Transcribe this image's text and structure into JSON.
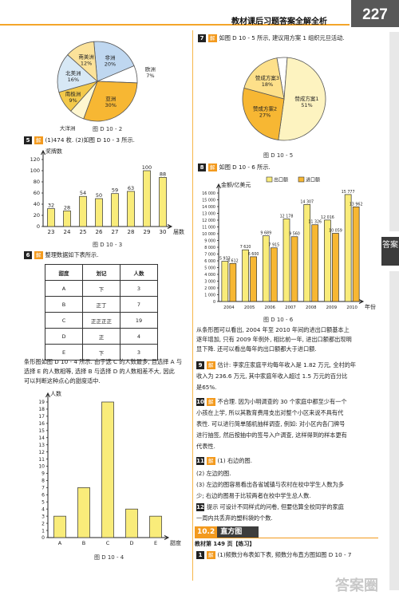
{
  "header": {
    "title": "教材课后习题答案全解全析",
    "page": "227"
  },
  "side_tab": "答案",
  "left": {
    "pie1": {
      "slices": [
        {
          "label": "非洲",
          "pct": "20%",
          "value": 20,
          "color": "#bfd7f0"
        },
        {
          "label": "欧洲",
          "pct": "7%",
          "value": 7,
          "color": "#ffffff"
        },
        {
          "label": "亚洲",
          "pct": "30%",
          "value": 30,
          "color": "#f7b733"
        },
        {
          "label": "大洋洲",
          "pct": "6%",
          "value": 6,
          "color": "#fff7d0"
        },
        {
          "label": "南极洲",
          "pct": "9%",
          "value": 9,
          "color": "#f3c94a"
        },
        {
          "label": "北美洲",
          "pct": "16%",
          "value": 16,
          "color": "#d7e8f5"
        },
        {
          "label": "南美洲",
          "pct": "12%",
          "value": 12,
          "color": "#fbe29a"
        }
      ],
      "caption": "图 D 10 - 2"
    },
    "q5": {
      "num": "5",
      "jie": "解",
      "text": "(1)474 枚. (2)如图 D 10 - 3 所示."
    },
    "bar1": {
      "ylabel": "奖牌数",
      "xlabel": "届数",
      "caption": "图 D 10 - 3"
    },
    "q6": {
      "num": "6",
      "jie": "解",
      "text": "整理数据如下表所示."
    },
    "table": {
      "headers": [
        "甜度",
        "划记",
        "人数"
      ],
      "rows": [
        [
          "A",
          "下",
          "3"
        ],
        [
          "B",
          "正丁",
          "7"
        ],
        [
          "C",
          "正正正正",
          "19"
        ],
        [
          "D",
          "正",
          "4"
        ],
        [
          "E",
          "下",
          "3"
        ]
      ]
    },
    "para": [
      "条形图如图 D 10 - 4 所示. 由于选 C 的人数最多, 且选择 A 与",
      "选择 E 的人数相等, 选择 B 与选择 D 的人数相差不大, 因此",
      "可以判断这种点心的甜度适中."
    ],
    "bar2": {
      "ylabel": "人数",
      "xlabel": "甜度",
      "caption": "图 D 10 - 4"
    }
  },
  "right": {
    "q7": {
      "num": "7",
      "jie": "解",
      "text": "如图 D 10 - 5 所示, 建议用方案 1 组织元旦活动."
    },
    "pie2": {
      "slices": [
        {
          "label": "弃权",
          "pct": "4%",
          "value": 4,
          "color": "#ffffff"
        },
        {
          "label": "赞成方案1",
          "pct": "51%",
          "value": 51,
          "color": "#fdf3c0"
        },
        {
          "label": "赞成方案2",
          "pct": "27%",
          "value": 27,
          "color": "#f7b733"
        },
        {
          "label": "赞成方案3",
          "pct": "18%",
          "value": 18,
          "color": "#fde08a"
        }
      ],
      "caption": "图 D 10 - 5"
    },
    "q8": {
      "num": "8",
      "jie": "解",
      "text": "如图 D 10 - 6 所示."
    },
    "bar3": {
      "ylabel": "金额/亿美元",
      "xlabel": "年份",
      "legend": [
        "出口额",
        "进口额"
      ],
      "caption": "图 D 10 - 6"
    },
    "para8": [
      "从条形图可以看出, 2004 年至 2010 年间的进出口额基本上",
      "逐年增加, 只有 2009 年例外, 相比前一年, 进出口额都出现明",
      "显下降. 还可以看出每年的出口额都大于进口额."
    ],
    "q9": {
      "num": "9",
      "jie": "解",
      "lines": [
        "估计: 李家庄家庭平均每年收入是 1.82 万元, 全村的年",
        "收入为 236.6 万元, 其中家庭年收入超过 1.5 万元的百分比",
        "是65%."
      ]
    },
    "q10": {
      "num": "10",
      "jie": "解",
      "lines": [
        "不合理. 因为小明调查的 30 个家庭中都至少有一个",
        "小孩在上学, 所以其教育费用支出对整个小区来说不具有代",
        "表性. 可以进行简单随机抽样调查, 例如: 对小区内各门牌号",
        "进行抽签, 然后按抽中的签号入户调查, 这样得到的样本更有",
        "代表性."
      ]
    },
    "q11": {
      "num": "11",
      "jie": "解",
      "lines": [
        "(1) 右边的图.",
        "(2) 左边的图.",
        "(3) 左边的图容易看出各省城镇与农村在校中学生人数为多",
        "少; 右边的图易于比较两者在校中学生总人数."
      ]
    },
    "q12": {
      "num": "12",
      "jie": "提示",
      "lines": [
        "可设计不同样式的问卷, 但要估算全校同学的家庭",
        "一周内共丢弃的塑料袋的个数."
      ]
    },
    "section": {
      "num": "10.2",
      "title": "直方图"
    },
    "textbook": {
      "label": "教材第 149 页【练习】"
    },
    "last": {
      "num": "1",
      "jie": "解",
      "text": "(1)频数分布表如下表, 频数分布直方图如图 D 10 - 7"
    }
  },
  "watermark": "答案圈",
  "chart_data": [
    {
      "type": "pie",
      "categories": [
        "非洲",
        "欧洲",
        "亚洲",
        "大洋洲",
        "南极洲",
        "北美洲",
        "南美洲"
      ],
      "values": [
        20,
        7,
        30,
        6,
        9,
        16,
        12
      ],
      "title": ""
    },
    {
      "type": "bar",
      "categories": [
        "23",
        "24",
        "25",
        "26",
        "27",
        "28",
        "29",
        "30"
      ],
      "values": [
        32,
        28,
        54,
        50,
        59,
        63,
        100,
        88
      ],
      "ylabel": "奖牌数",
      "xlabel": "届数",
      "ylim": [
        0,
        120
      ],
      "yticks": [
        0,
        20,
        40,
        60,
        80,
        100,
        120
      ]
    },
    {
      "type": "bar",
      "categories": [
        "A",
        "B",
        "C",
        "D",
        "E"
      ],
      "values": [
        3,
        7,
        19,
        4,
        3
      ],
      "ylabel": "人数",
      "xlabel": "甜度",
      "ylim": [
        0,
        19
      ],
      "yticks": [
        0,
        1,
        2,
        3,
        4,
        5,
        6,
        7,
        8,
        9,
        10,
        11,
        12,
        13,
        14,
        15,
        16,
        17,
        18,
        19
      ]
    },
    {
      "type": "pie",
      "categories": [
        "弃权",
        "赞成方案1",
        "赞成方案2",
        "赞成方案3"
      ],
      "values": [
        4,
        51,
        27,
        18
      ],
      "title": ""
    },
    {
      "type": "bar",
      "categories": [
        "2004",
        "2005",
        "2006",
        "2007",
        "2008",
        "2009",
        "2010"
      ],
      "series": [
        {
          "name": "出口额",
          "values": [
            5933,
            7620,
            9689,
            12178,
            14307,
            12016,
            15777
          ]
        },
        {
          "name": "进口额",
          "values": [
            5612,
            6600,
            7915,
            9560,
            11326,
            10059,
            13962
          ]
        }
      ],
      "ylabel": "金额/亿美元",
      "xlabel": "年份",
      "ylim": [
        0,
        16000
      ],
      "yticks": [
        0,
        1000,
        2000,
        3000,
        4000,
        5000,
        6000,
        7000,
        8000,
        9000,
        10000,
        11000,
        12000,
        13000,
        14000,
        15000,
        16000
      ],
      "ytick_labels": [
        "0",
        "1 000",
        "2 000",
        "3 000",
        "4 000",
        "5 000",
        "6 000",
        "7 000",
        "8 000",
        "9 000",
        "10 000",
        "11 000",
        "12 000",
        "13 000",
        "14 000",
        "15 000",
        "16 000"
      ],
      "data_labels": [
        [
          "5 933",
          "7 620",
          "9 689",
          "12 178",
          "14 307",
          "12 016",
          "15 777"
        ],
        [
          "5 612",
          "6 600",
          "7 915",
          "9 560",
          "11 326",
          "10 059",
          "13 962"
        ]
      ],
      "colors": [
        "#f9ec7a",
        "#f7b733"
      ]
    }
  ]
}
